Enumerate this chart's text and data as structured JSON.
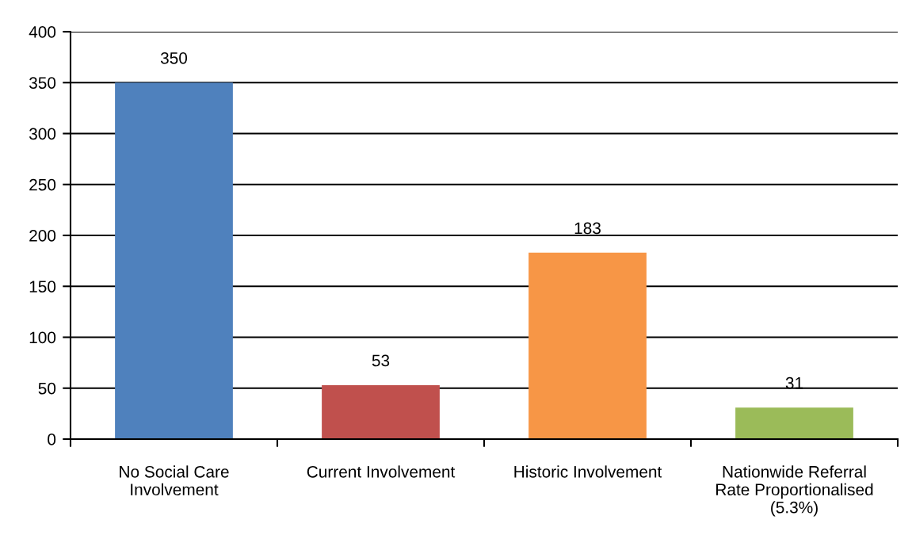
{
  "chart_data": {
    "type": "bar",
    "categories": [
      "No Social Care\nInvolvement",
      "Current Involvement",
      "Historic Involvement",
      "Nationwide Referral\nRate Proportionalised\n(5.3%)"
    ],
    "values": [
      350,
      53,
      183,
      31
    ],
    "colors": [
      "#4f81bd",
      "#c0504d",
      "#f79646",
      "#9bbb59"
    ],
    "ylim": [
      0,
      400
    ],
    "yticks": [
      0,
      50,
      100,
      150,
      200,
      250,
      300,
      350,
      400
    ],
    "grid": "y",
    "data_labels": true,
    "legend": false
  }
}
